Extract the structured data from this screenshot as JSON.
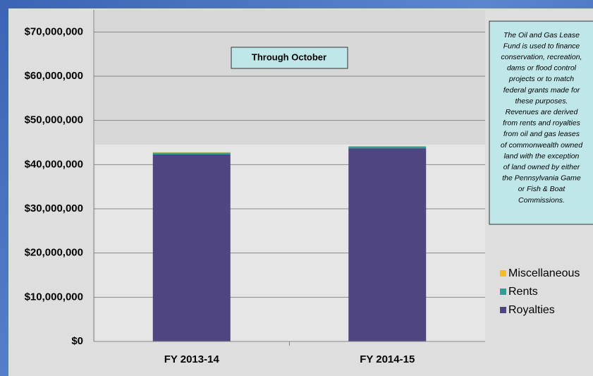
{
  "chart_data": {
    "type": "stacked_bar",
    "annotation": "Through October",
    "note_lines": [
      "The Oil and Gas Lease",
      "Fund is used to finance",
      "conservation, recreation,",
      "dams or flood control",
      "projects or to match",
      "federal grants made for",
      "these purposes.",
      "Revenues are derived",
      "from rents and royalties",
      "from oil and gas leases",
      "of commonwealth owned",
      "land with the exception",
      "of land owned by either",
      "the Pennsylvania Game",
      "or Fish & Boat",
      "Commissions."
    ],
    "categories": [
      "FY 2013-14",
      "FY 2014-15"
    ],
    "series": [
      {
        "name": "Royalties",
        "color": "#4f4580",
        "values": [
          42300000,
          43700000
        ]
      },
      {
        "name": "Rents",
        "color": "#2e9e96",
        "values": [
          400000,
          400000
        ]
      },
      {
        "name": "Miscellaneous",
        "color": "#f0c020",
        "values": [
          100000,
          100000
        ]
      }
    ],
    "ylim": [
      0,
      75000000
    ],
    "yticks": [
      {
        "value": 0,
        "label": "$0"
      },
      {
        "value": 10000000,
        "label": "$10,000,000"
      },
      {
        "value": 20000000,
        "label": "$20,000,000"
      },
      {
        "value": 30000000,
        "label": "$30,000,000"
      },
      {
        "value": 40000000,
        "label": "$40,000,000"
      },
      {
        "value": 50000000,
        "label": "$50,000,000"
      },
      {
        "value": 60000000,
        "label": "$60,000,000"
      },
      {
        "value": 70000000,
        "label": "$70,000,000"
      }
    ],
    "grid": true,
    "legend": "right"
  }
}
